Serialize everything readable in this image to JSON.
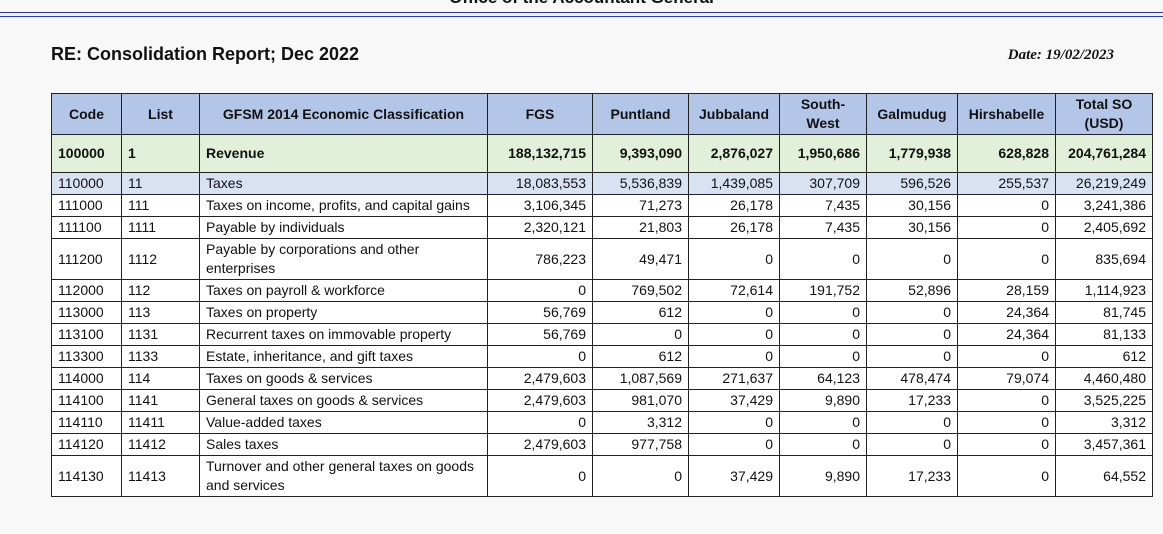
{
  "header": {
    "office": "Office of the Accountant General",
    "title": "RE: Consolidation Report; Dec 2022",
    "date": "Date: 19/02/2023"
  },
  "table": {
    "headers": [
      "Code",
      "List",
      "GFSM 2014 Economic Classification",
      "FGS",
      "Puntland",
      "Jubbaland",
      "South-West",
      "Galmudug",
      "Hirshabelle",
      "Total SO (USD)"
    ],
    "rows": [
      [
        "100000",
        "1",
        "Revenue",
        "188,132,715",
        "9,393,090",
        "2,876,027",
        "1,950,686",
        "1,779,938",
        "628,828",
        "204,761,284"
      ],
      [
        "110000",
        "11",
        "Taxes",
        "18,083,553",
        "5,536,839",
        "1,439,085",
        "307,709",
        "596,526",
        "255,537",
        "26,219,249"
      ],
      [
        "111000",
        "111",
        "Taxes on income, profits, and capital gains",
        "3,106,345",
        "71,273",
        "26,178",
        "7,435",
        "30,156",
        "0",
        "3,241,386"
      ],
      [
        "111100",
        "1111",
        "Payable by individuals",
        "2,320,121",
        "21,803",
        "26,178",
        "7,435",
        "30,156",
        "0",
        "2,405,692"
      ],
      [
        "111200",
        "1112",
        "Payable by corporations and other enterprises",
        "786,223",
        "49,471",
        "0",
        "0",
        "0",
        "0",
        "835,694"
      ],
      [
        "112000",
        "112",
        "Taxes on payroll & workforce",
        "0",
        "769,502",
        "72,614",
        "191,752",
        "52,896",
        "28,159",
        "1,114,923"
      ],
      [
        "113000",
        "113",
        "Taxes on property",
        "56,769",
        "612",
        "0",
        "0",
        "0",
        "24,364",
        "81,745"
      ],
      [
        "113100",
        "1131",
        "Recurrent taxes on immovable property",
        "56,769",
        "0",
        "0",
        "0",
        "0",
        "24,364",
        "81,133"
      ],
      [
        "113300",
        "1133",
        "Estate, inheritance, and gift taxes",
        "0",
        "612",
        "0",
        "0",
        "0",
        "0",
        "612"
      ],
      [
        "114000",
        "114",
        "Taxes on goods & services",
        "2,479,603",
        "1,087,569",
        "271,637",
        "64,123",
        "478,474",
        "79,074",
        "4,460,480"
      ],
      [
        "114100",
        "1141",
        "General taxes on goods & services",
        "2,479,603",
        "981,070",
        "37,429",
        "9,890",
        "17,233",
        "0",
        "3,525,225"
      ],
      [
        "114110",
        "11411",
        "Value-added taxes",
        "0",
        "3,312",
        "0",
        "0",
        "0",
        "0",
        "3,312"
      ],
      [
        "114120",
        "11412",
        "Sales taxes",
        "2,479,603",
        "977,758",
        "0",
        "0",
        "0",
        "0",
        "3,457,361"
      ],
      [
        "114130",
        "11413",
        "Turnover and other general taxes on goods and services",
        "0",
        "0",
        "37,429",
        "9,890",
        "17,233",
        "0",
        "64,552"
      ]
    ]
  }
}
